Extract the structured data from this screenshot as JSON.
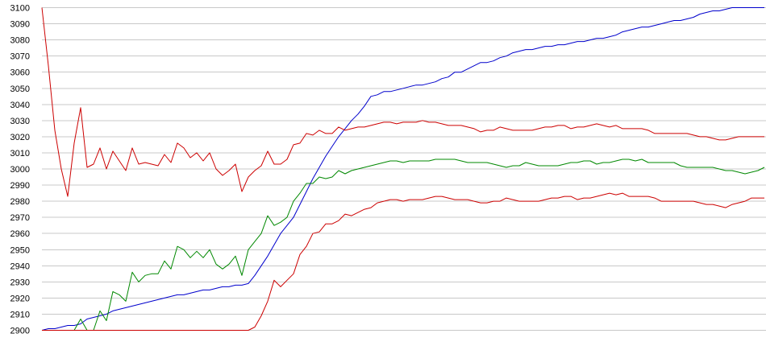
{
  "chart_data": {
    "type": "line",
    "title": "",
    "xlabel": "",
    "ylabel": "",
    "ylim": [
      2900,
      3100
    ],
    "y_ticks": [
      "3100",
      "3090",
      "3080",
      "3070",
      "3060",
      "3050",
      "3040",
      "3030",
      "3020",
      "3010",
      "3000",
      "2990",
      "2980",
      "2970",
      "2960",
      "2950",
      "2940",
      "2930",
      "2920",
      "2910",
      "2900"
    ],
    "grid": "horizontal",
    "x": [
      0,
      1,
      2,
      3,
      4,
      5,
      6,
      7,
      8,
      9,
      10,
      11,
      12,
      13,
      14,
      15,
      16,
      17,
      18,
      19,
      20,
      21,
      22,
      23,
      24,
      25,
      26,
      27,
      28,
      29,
      30,
      31,
      32,
      33,
      34,
      35,
      36,
      37,
      38,
      39,
      40,
      41,
      42,
      43,
      44,
      45,
      46,
      47,
      48,
      49,
      50,
      51,
      52,
      53,
      54,
      55,
      56,
      57,
      58,
      59,
      60,
      61,
      62,
      63,
      64,
      65,
      66,
      67,
      68,
      69,
      70,
      71,
      72,
      73,
      74,
      75,
      76,
      77,
      78,
      79,
      80,
      81,
      82,
      83,
      84,
      85,
      86,
      87,
      88,
      89,
      90,
      91,
      92,
      93,
      94,
      95,
      96,
      97,
      98,
      99,
      100,
      101,
      102,
      103,
      104,
      105,
      106,
      107,
      108,
      109,
      110,
      111,
      112
    ],
    "series": [
      {
        "color": "#0000cc",
        "values": [
          2900,
          2901,
          2901,
          2902,
          2903,
          2903,
          2904,
          2907,
          2908,
          2909,
          2910,
          2912,
          2913,
          2914,
          2915,
          2916,
          2917,
          2918,
          2919,
          2920,
          2921,
          2922,
          2922,
          2923,
          2924,
          2925,
          2925,
          2926,
          2927,
          2927,
          2928,
          2928,
          2929,
          2934,
          2940,
          2946,
          2953,
          2960,
          2965,
          2970,
          2978,
          2986,
          2994,
          3001,
          3008,
          3014,
          3020,
          3025,
          3030,
          3034,
          3039,
          3045,
          3046,
          3048,
          3048,
          3049,
          3050,
          3051,
          3052,
          3052,
          3053,
          3054,
          3056,
          3057,
          3060,
          3060,
          3062,
          3064,
          3066,
          3066,
          3067,
          3069,
          3070,
          3072,
          3073,
          3074,
          3074,
          3075,
          3076,
          3076,
          3077,
          3077,
          3078,
          3079,
          3079,
          3080,
          3081,
          3081,
          3082,
          3083,
          3085,
          3086,
          3087,
          3088,
          3088,
          3089,
          3090,
          3091,
          3092,
          3092,
          3093,
          3094,
          3096,
          3097,
          3098,
          3098,
          3099,
          3100,
          3100,
          3100,
          3100,
          3100,
          3100
        ]
      },
      {
        "color": "#008800",
        "values": [
          2900,
          2900,
          2900,
          2900,
          2900,
          2900,
          2907,
          2900,
          2900,
          2912,
          2906,
          2924,
          2922,
          2918,
          2936,
          2930,
          2934,
          2935,
          2935,
          2943,
          2938,
          2952,
          2950,
          2945,
          2949,
          2945,
          2950,
          2941,
          2938,
          2941,
          2946,
          2934,
          2950,
          2955,
          2960,
          2971,
          2965,
          2967,
          2970,
          2980,
          2985,
          2991,
          2991,
          2995,
          2994,
          2995,
          2999,
          2997,
          2999,
          3000,
          3001,
          3002,
          3003,
          3004,
          3005,
          3005,
          3004,
          3005,
          3005,
          3005,
          3005,
          3006,
          3006,
          3006,
          3006,
          3005,
          3004,
          3004,
          3004,
          3004,
          3003,
          3002,
          3001,
          3002,
          3002,
          3004,
          3003,
          3002,
          3002,
          3002,
          3002,
          3003,
          3004,
          3004,
          3005,
          3005,
          3003,
          3004,
          3004,
          3005,
          3006,
          3006,
          3005,
          3006,
          3004,
          3004,
          3004,
          3004,
          3004,
          3002,
          3001,
          3001,
          3001,
          3001,
          3001,
          3000,
          2999,
          2999,
          2998,
          2997,
          2998,
          2999,
          3001
        ]
      },
      {
        "color": "#cc0000",
        "values": [
          3100,
          3064,
          3024,
          3000,
          2983,
          3016,
          3038,
          3001,
          3003,
          3013,
          3000,
          3011,
          3005,
          2999,
          3013,
          3003,
          3004,
          3003,
          3002,
          3009,
          3004,
          3016,
          3013,
          3007,
          3010,
          3005,
          3010,
          3000,
          2996,
          2999,
          3003,
          2986,
          2995,
          2999,
          3002,
          3011,
          3003,
          3003,
          3006,
          3015,
          3016,
          3022,
          3021,
          3024,
          3022,
          3022,
          3026,
          3024,
          3025,
          3026,
          3026,
          3027,
          3028,
          3029,
          3029,
          3028,
          3029,
          3029,
          3029,
          3030,
          3029,
          3029,
          3028,
          3027,
          3027,
          3027,
          3026,
          3025,
          3023,
          3024,
          3024,
          3026,
          3025,
          3024,
          3024,
          3024,
          3024,
          3025,
          3026,
          3026,
          3027,
          3027,
          3025,
          3026,
          3026,
          3027,
          3028,
          3027,
          3026,
          3027,
          3025,
          3025,
          3025,
          3025,
          3024,
          3022,
          3022,
          3022,
          3022,
          3022,
          3022,
          3021,
          3020,
          3020,
          3019,
          3018,
          3018,
          3019,
          3020,
          3020,
          3020,
          3020,
          3020
        ]
      },
      {
        "color": "#cc0000",
        "values": [
          2900,
          2900,
          2900,
          2900,
          2900,
          2900,
          2900,
          2900,
          2900,
          2900,
          2900,
          2900,
          2900,
          2900,
          2900,
          2900,
          2900,
          2900,
          2900,
          2900,
          2900,
          2900,
          2900,
          2900,
          2900,
          2900,
          2900,
          2900,
          2900,
          2900,
          2900,
          2900,
          2900,
          2902,
          2909,
          2918,
          2931,
          2927,
          2931,
          2935,
          2947,
          2952,
          2960,
          2961,
          2966,
          2966,
          2968,
          2972,
          2971,
          2973,
          2975,
          2976,
          2979,
          2980,
          2981,
          2981,
          2980,
          2981,
          2981,
          2981,
          2982,
          2983,
          2983,
          2982,
          2981,
          2981,
          2981,
          2980,
          2979,
          2979,
          2980,
          2980,
          2982,
          2981,
          2980,
          2980,
          2980,
          2980,
          2981,
          2982,
          2982,
          2983,
          2983,
          2981,
          2982,
          2982,
          2983,
          2984,
          2985,
          2984,
          2985,
          2983,
          2983,
          2983,
          2983,
          2982,
          2980,
          2980,
          2980,
          2980,
          2980,
          2980,
          2979,
          2978,
          2978,
          2977,
          2976,
          2978,
          2979,
          2980,
          2982,
          2982,
          2982
        ]
      }
    ]
  }
}
